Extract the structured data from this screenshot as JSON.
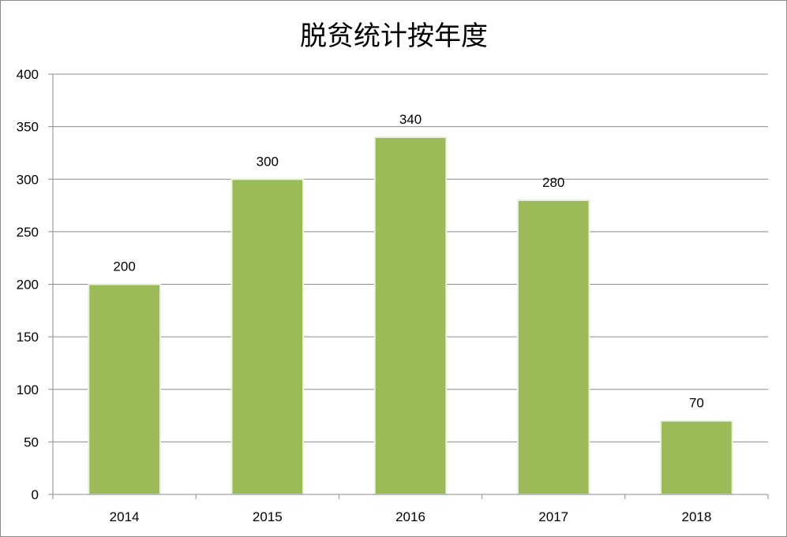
{
  "chart_data": {
    "type": "bar",
    "title": "脱贫统计按年度",
    "categories": [
      "2014",
      "2015",
      "2016",
      "2017",
      "2018"
    ],
    "values": [
      200,
      300,
      340,
      280,
      70
    ],
    "data_labels": [
      "200",
      "300",
      "340",
      "280",
      "70"
    ],
    "xlabel": "",
    "ylabel": "",
    "ylim": [
      0,
      400
    ],
    "yticks": [
      0,
      50,
      100,
      150,
      200,
      250,
      300,
      350,
      400
    ],
    "ytick_labels": [
      "0",
      "50",
      "100",
      "150",
      "200",
      "250",
      "300",
      "350",
      "400"
    ],
    "grid": true,
    "legend": "none",
    "colors": {
      "bar": "#9bbb59",
      "bar_edge": "#eaf2dc",
      "grid": "#8c8c8c",
      "axis": "#8c8c8c"
    }
  }
}
